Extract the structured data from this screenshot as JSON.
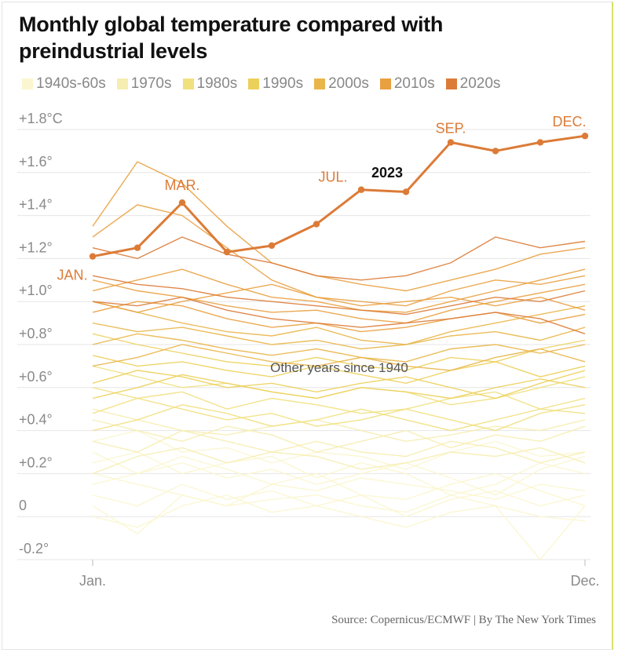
{
  "chart_data": {
    "type": "line",
    "title": "Monthly global temperature compared with preindustrial levels",
    "legend": [
      {
        "label": "1940s-60s",
        "color": "#fbf6cf"
      },
      {
        "label": "1970s",
        "color": "#f6edb0"
      },
      {
        "label": "1980s",
        "color": "#f1e07e"
      },
      {
        "label": "1990s",
        "color": "#ecd05c"
      },
      {
        "label": "2000s",
        "color": "#e9b64a"
      },
      {
        "label": "2010s",
        "color": "#e9a040"
      },
      {
        "label": "2020s",
        "color": "#dc7b37"
      }
    ],
    "ylim": [
      -0.2,
      1.8
    ],
    "y_ticks": [
      {
        "value": 1.8,
        "label": "+1.8°C"
      },
      {
        "value": 1.6,
        "label": "+1.6°"
      },
      {
        "value": 1.4,
        "label": "+1.4°"
      },
      {
        "value": 1.2,
        "label": "+1.2°"
      },
      {
        "value": 1.0,
        "label": "+1.0°"
      },
      {
        "value": 0.8,
        "label": "+0.8°"
      },
      {
        "value": 0.6,
        "label": "+0.6°"
      },
      {
        "value": 0.4,
        "label": "+0.4°"
      },
      {
        "value": 0.2,
        "label": "+0.2°"
      },
      {
        "value": 0,
        "label": "0"
      },
      {
        "value": -0.2,
        "label": "-0.2°"
      }
    ],
    "x_labels": {
      "first": "Jan.",
      "last": "Dec."
    },
    "highlight": {
      "name": "2023",
      "color": "#dc7b37",
      "values": [
        1.21,
        1.25,
        1.46,
        1.23,
        1.26,
        1.36,
        1.52,
        1.51,
        1.74,
        1.7,
        1.74,
        1.77
      ],
      "month_labels": [
        {
          "month": 1,
          "text": "JAN."
        },
        {
          "month": 3,
          "text": "MAR."
        },
        {
          "month": 7,
          "text": "JUL."
        },
        {
          "month": 9,
          "text": "SEP."
        },
        {
          "month": 12,
          "text": "DEC."
        }
      ]
    },
    "annotation": "Other years since 1940",
    "background_series": [
      {
        "decade": "1940s-60s",
        "values": [
          0.1,
          0.05,
          0.15,
          0.08,
          0.12,
          0.05,
          0.1,
          0.0,
          0.08,
          0.12,
          0.05,
          0.1
        ]
      },
      {
        "decade": "1940s-60s",
        "values": [
          0.3,
          0.2,
          0.25,
          0.18,
          0.22,
          0.15,
          0.2,
          0.25,
          0.18,
          0.1,
          0.22,
          0.28
        ]
      },
      {
        "decade": "1940s-60s",
        "values": [
          0.2,
          0.15,
          0.1,
          0.05,
          0.15,
          0.2,
          0.1,
          0.08,
          0.15,
          0.2,
          0.12,
          0.05
        ]
      },
      {
        "decade": "1940s-60s",
        "values": [
          0.35,
          0.4,
          0.3,
          0.32,
          0.25,
          0.3,
          0.28,
          0.22,
          0.3,
          0.35,
          0.28,
          0.3
        ]
      },
      {
        "decade": "1940s-60s",
        "values": [
          0.0,
          -0.05,
          0.05,
          0.1,
          0.02,
          0.05,
          0.0,
          -0.05,
          0.02,
          0.05,
          0.0,
          -0.02
        ]
      },
      {
        "decade": "1940s-60s",
        "values": [
          0.25,
          0.3,
          0.2,
          0.25,
          0.28,
          0.18,
          0.25,
          0.2,
          0.1,
          0.15,
          0.25,
          0.2
        ]
      },
      {
        "decade": "1940s-60s",
        "values": [
          0.15,
          0.2,
          0.28,
          0.22,
          0.15,
          0.12,
          0.18,
          0.15,
          0.12,
          0.08,
          0.15,
          0.12
        ]
      },
      {
        "decade": "1940s-60s",
        "values": [
          0.05,
          -0.08,
          0.1,
          0.05,
          0.08,
          0.1,
          0.05,
          0.02,
          0.1,
          0.05,
          -0.2,
          0.05
        ]
      },
      {
        "decade": "1970s",
        "values": [
          0.35,
          0.3,
          0.4,
          0.35,
          0.3,
          0.35,
          0.3,
          0.28,
          0.35,
          0.32,
          0.25,
          0.3
        ]
      },
      {
        "decade": "1970s",
        "values": [
          0.45,
          0.4,
          0.35,
          0.42,
          0.38,
          0.3,
          0.35,
          0.4,
          0.32,
          0.38,
          0.35,
          0.42
        ]
      },
      {
        "decade": "1970s",
        "values": [
          0.2,
          0.28,
          0.32,
          0.25,
          0.3,
          0.28,
          0.22,
          0.25,
          0.3,
          0.28,
          0.32,
          0.25
        ]
      },
      {
        "decade": "1970s",
        "values": [
          0.5,
          0.45,
          0.4,
          0.38,
          0.42,
          0.45,
          0.4,
          0.35,
          0.38,
          0.42,
          0.4,
          0.45
        ]
      },
      {
        "decade": "1980s",
        "values": [
          0.48,
          0.55,
          0.5,
          0.45,
          0.48,
          0.42,
          0.45,
          0.5,
          0.45,
          0.4,
          0.48,
          0.52
        ]
      },
      {
        "decade": "1980s",
        "values": [
          0.6,
          0.55,
          0.58,
          0.5,
          0.55,
          0.52,
          0.48,
          0.5,
          0.55,
          0.58,
          0.5,
          0.55
        ]
      },
      {
        "decade": "1980s",
        "values": [
          0.4,
          0.45,
          0.52,
          0.48,
          0.42,
          0.45,
          0.5,
          0.45,
          0.4,
          0.45,
          0.5,
          0.48
        ]
      },
      {
        "decade": "1980s",
        "values": [
          0.7,
          0.65,
          0.6,
          0.62,
          0.58,
          0.55,
          0.6,
          0.58,
          0.52,
          0.55,
          0.6,
          0.65
        ]
      },
      {
        "decade": "1990s",
        "values": [
          0.62,
          0.68,
          0.65,
          0.6,
          0.62,
          0.58,
          0.62,
          0.65,
          0.6,
          0.55,
          0.62,
          0.68
        ]
      },
      {
        "decade": "1990s",
        "values": [
          0.75,
          0.7,
          0.72,
          0.68,
          0.65,
          0.7,
          0.66,
          0.62,
          0.68,
          0.72,
          0.65,
          0.7
        ]
      },
      {
        "decade": "1990s",
        "values": [
          0.55,
          0.6,
          0.66,
          0.62,
          0.58,
          0.55,
          0.6,
          0.58,
          0.55,
          0.6,
          0.64,
          0.6
        ]
      },
      {
        "decade": "1990s",
        "values": [
          0.85,
          0.8,
          0.76,
          0.72,
          0.7,
          0.74,
          0.7,
          0.68,
          0.74,
          0.72,
          0.78,
          0.82
        ]
      },
      {
        "decade": "2000s",
        "values": [
          0.8,
          0.85,
          0.82,
          0.78,
          0.75,
          0.78,
          0.74,
          0.72,
          0.78,
          0.8,
          0.76,
          0.8
        ]
      },
      {
        "decade": "2000s",
        "values": [
          0.9,
          0.86,
          0.88,
          0.84,
          0.8,
          0.82,
          0.78,
          0.8,
          0.84,
          0.86,
          0.82,
          0.88
        ]
      },
      {
        "decade": "2000s",
        "values": [
          0.7,
          0.74,
          0.8,
          0.76,
          0.72,
          0.7,
          0.74,
          0.7,
          0.68,
          0.74,
          0.78,
          0.72
        ]
      },
      {
        "decade": "2000s",
        "values": [
          1.0,
          0.95,
          0.9,
          0.86,
          0.84,
          0.88,
          0.82,
          0.8,
          0.86,
          0.9,
          0.94,
          0.98
        ]
      },
      {
        "decade": "2010s",
        "values": [
          0.95,
          1.0,
          0.98,
          0.92,
          0.88,
          0.9,
          0.86,
          0.88,
          0.92,
          0.95,
          0.9,
          0.94
        ]
      },
      {
        "decade": "2010s",
        "values": [
          1.1,
          1.05,
          1.02,
          0.98,
          0.95,
          0.96,
          0.92,
          0.9,
          0.96,
          1.0,
          1.04,
          1.08
        ]
      },
      {
        "decade": "2010s",
        "values": [
          1.3,
          1.45,
          1.4,
          1.25,
          1.1,
          1.02,
          1.0,
          0.98,
          1.05,
          1.1,
          1.08,
          1.12
        ]
      },
      {
        "decade": "2010s",
        "values": [
          1.05,
          1.1,
          1.15,
          1.08,
          1.02,
          1.0,
          0.96,
          0.95,
          1.0,
          1.05,
          1.1,
          1.15
        ]
      },
      {
        "decade": "2010s",
        "values": [
          1.35,
          1.65,
          1.55,
          1.35,
          1.18,
          1.12,
          1.08,
          1.05,
          1.1,
          1.15,
          1.22,
          1.25
        ]
      },
      {
        "decade": "2010s",
        "values": [
          1.0,
          0.95,
          1.0,
          1.04,
          1.08,
          1.02,
          0.98,
          1.0,
          1.02,
          0.98,
          1.02,
          0.96
        ]
      },
      {
        "decade": "2020s",
        "values": [
          1.25,
          1.2,
          1.3,
          1.22,
          1.18,
          1.12,
          1.1,
          1.12,
          1.18,
          1.3,
          1.25,
          1.28
        ]
      },
      {
        "decade": "2020s",
        "values": [
          1.0,
          0.98,
          1.02,
          0.96,
          0.92,
          0.9,
          0.88,
          0.9,
          0.92,
          0.95,
          0.92,
          0.85
        ]
      },
      {
        "decade": "2020s",
        "values": [
          1.12,
          1.08,
          1.06,
          1.02,
          1.0,
          0.98,
          0.96,
          0.94,
          0.98,
          1.02,
          1.0,
          1.05
        ]
      }
    ]
  },
  "source": "Source: Copernicus/ECMWF | By The New York Times"
}
